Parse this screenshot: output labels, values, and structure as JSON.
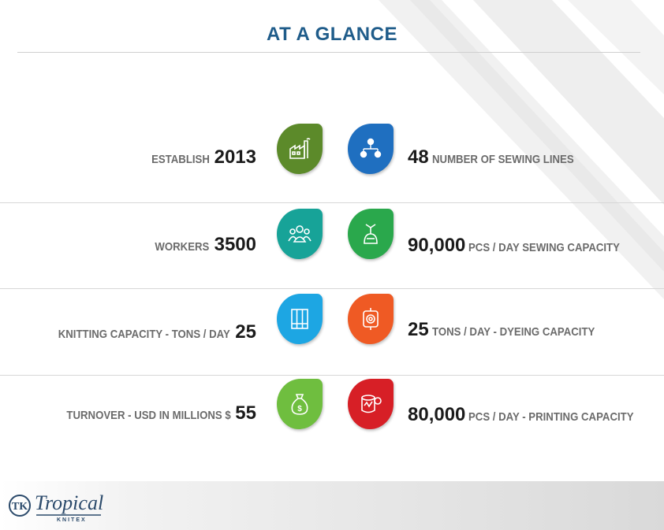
{
  "title": "AT A GLANCE",
  "left": [
    {
      "label": "ESTABLISH",
      "value": "2013",
      "icon": "factory-icon",
      "color": "#5c8a2a"
    },
    {
      "label": "WORKERS",
      "value": "3500",
      "icon": "people-group-icon",
      "color": "#17a398"
    },
    {
      "label": "KNITTING CAPACITY - TONS / DAY",
      "value": "25",
      "icon": "knitting-machine-icon",
      "color": "#1da6e3"
    },
    {
      "label": "TURNOVER - USD IN MILLIONS $",
      "value": "55",
      "icon": "money-bag-icon",
      "color": "#6fbe3f"
    }
  ],
  "right": [
    {
      "value": "48",
      "label": "NUMBER OF SEWING LINES",
      "icon": "network-icon",
      "color": "#1f6fc0"
    },
    {
      "value": "90,000",
      "label": "PCS / DAY SEWING CAPACITY",
      "icon": "sewing-machine-icon",
      "color": "#2aa84c"
    },
    {
      "value": "25",
      "label": "TONS / DAY - DYEING CAPACITY",
      "icon": "dyeing-machine-icon",
      "color": "#ef5a24"
    },
    {
      "value": "80,000",
      "label": "PCS / DAY - PRINTING CAPACITY",
      "icon": "printing-icon",
      "color": "#d71f26"
    }
  ],
  "logo": {
    "name": "Tropical",
    "sub": "KNITEX",
    "mark": "TK"
  }
}
